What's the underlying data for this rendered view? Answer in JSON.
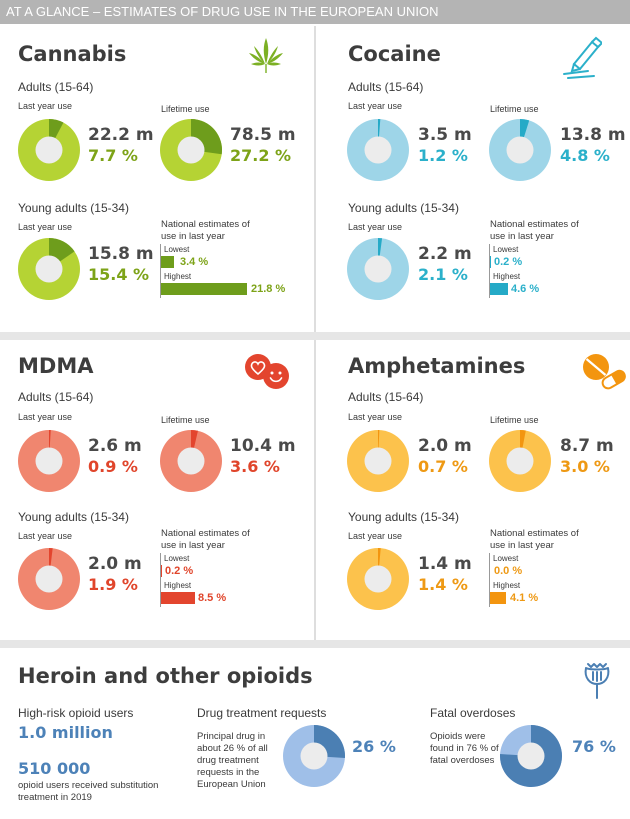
{
  "header": {
    "title": "AT A GLANCE – ESTIMATES OF DRUG USE IN THE EUROPEAN UNION"
  },
  "labels": {
    "adults": "Adults (15-64)",
    "young_adults": "Young adults (15-34)",
    "last_year_use": "Last year use",
    "lifetime_use": "Lifetime use",
    "national_estimates": "National estimates of use in last year",
    "lowest": "Lowest",
    "highest": "Highest"
  },
  "colors": {
    "cannabis": "#b5d334",
    "cannabis_dark": "#6e9d1c",
    "cannabis_text": "#7da318",
    "cocaine": "#9ed5e8",
    "cocaine_dark": "#25aac7",
    "cocaine_text": "#2bb0ca",
    "mdma": "#f0866f",
    "mdma_dark": "#e3452e",
    "mdma_text": "#e0452b",
    "amphetamines": "#fcc24c",
    "amphetamines_dark": "#f3950f",
    "amphetamines_text": "#ee9914",
    "opioids": "#9fbfe8",
    "opioids_dark": "#4b7fb3",
    "opioids_text": "#4d82b8"
  },
  "icons": {
    "cannabis": "cannabis-leaf-icon",
    "cocaine": "cocaine-line-icon",
    "mdma": "heart-smiley-icon",
    "amphetamines": "pills-icon",
    "opioids": "poppy-icon"
  },
  "cannabis": {
    "name": "Cannabis",
    "adults_last_year": {
      "count": "22.2 m",
      "pct": "7.7 %",
      "value": 7.7
    },
    "adults_lifetime": {
      "count": "78.5 m",
      "pct": "27.2 %",
      "value": 27.2
    },
    "young_last_year": {
      "count": "15.8 m",
      "pct": "15.4 %",
      "value": 15.4
    },
    "lowest": {
      "pct": "3.4 %",
      "value": 3.4
    },
    "highest": {
      "pct": "21.8 %",
      "value": 21.8
    }
  },
  "cocaine": {
    "name": "Cocaine",
    "adults_last_year": {
      "count": "3.5 m",
      "pct": "1.2 %",
      "value": 1.2
    },
    "adults_lifetime": {
      "count": "13.8 m",
      "pct": "4.8 %",
      "value": 4.8
    },
    "young_last_year": {
      "count": "2.2 m",
      "pct": "2.1 %",
      "value": 2.1
    },
    "lowest": {
      "pct": "0.2 %",
      "value": 0.2
    },
    "highest": {
      "pct": "4.6 %",
      "value": 4.6
    }
  },
  "mdma": {
    "name": "MDMA",
    "adults_last_year": {
      "count": "2.6 m",
      "pct": "0.9 %",
      "value": 0.9
    },
    "adults_lifetime": {
      "count": "10.4 m",
      "pct": "3.6 %",
      "value": 3.6
    },
    "young_last_year": {
      "count": "2.0 m",
      "pct": "1.9 %",
      "value": 1.9
    },
    "lowest": {
      "pct": "0.2 %",
      "value": 0.2
    },
    "highest": {
      "pct": "8.5 %",
      "value": 8.5
    }
  },
  "amphetamines": {
    "name": "Amphetamines",
    "adults_last_year": {
      "count": "2.0 m",
      "pct": "0.7 %",
      "value": 0.7
    },
    "adults_lifetime": {
      "count": "8.7 m",
      "pct": "3.0 %",
      "value": 3.0
    },
    "young_last_year": {
      "count": "1.4 m",
      "pct": "1.4 %",
      "value": 1.4
    },
    "lowest": {
      "pct": "0.0 %",
      "value": 0.0
    },
    "highest": {
      "pct": "4.1 %",
      "value": 4.1
    }
  },
  "opioids": {
    "name": "Heroin and other opioids",
    "high_risk_label": "High-risk opioid users",
    "high_risk_value": "1.0 million",
    "substitution_value": "510 000",
    "substitution_text": "opioid users received substitution treatment in 2019",
    "treatment_heading": "Drug treatment requests",
    "treatment_text": "Principal drug in about 26 % of all drug treatment requests in the European Union",
    "treatment_pct": "26 %",
    "treatment_value": 26,
    "overdose_heading": "Fatal overdoses",
    "overdose_text": "Opioids were found in 76 % of fatal overdoses",
    "overdose_pct": "76 %",
    "overdose_value": 76
  }
}
